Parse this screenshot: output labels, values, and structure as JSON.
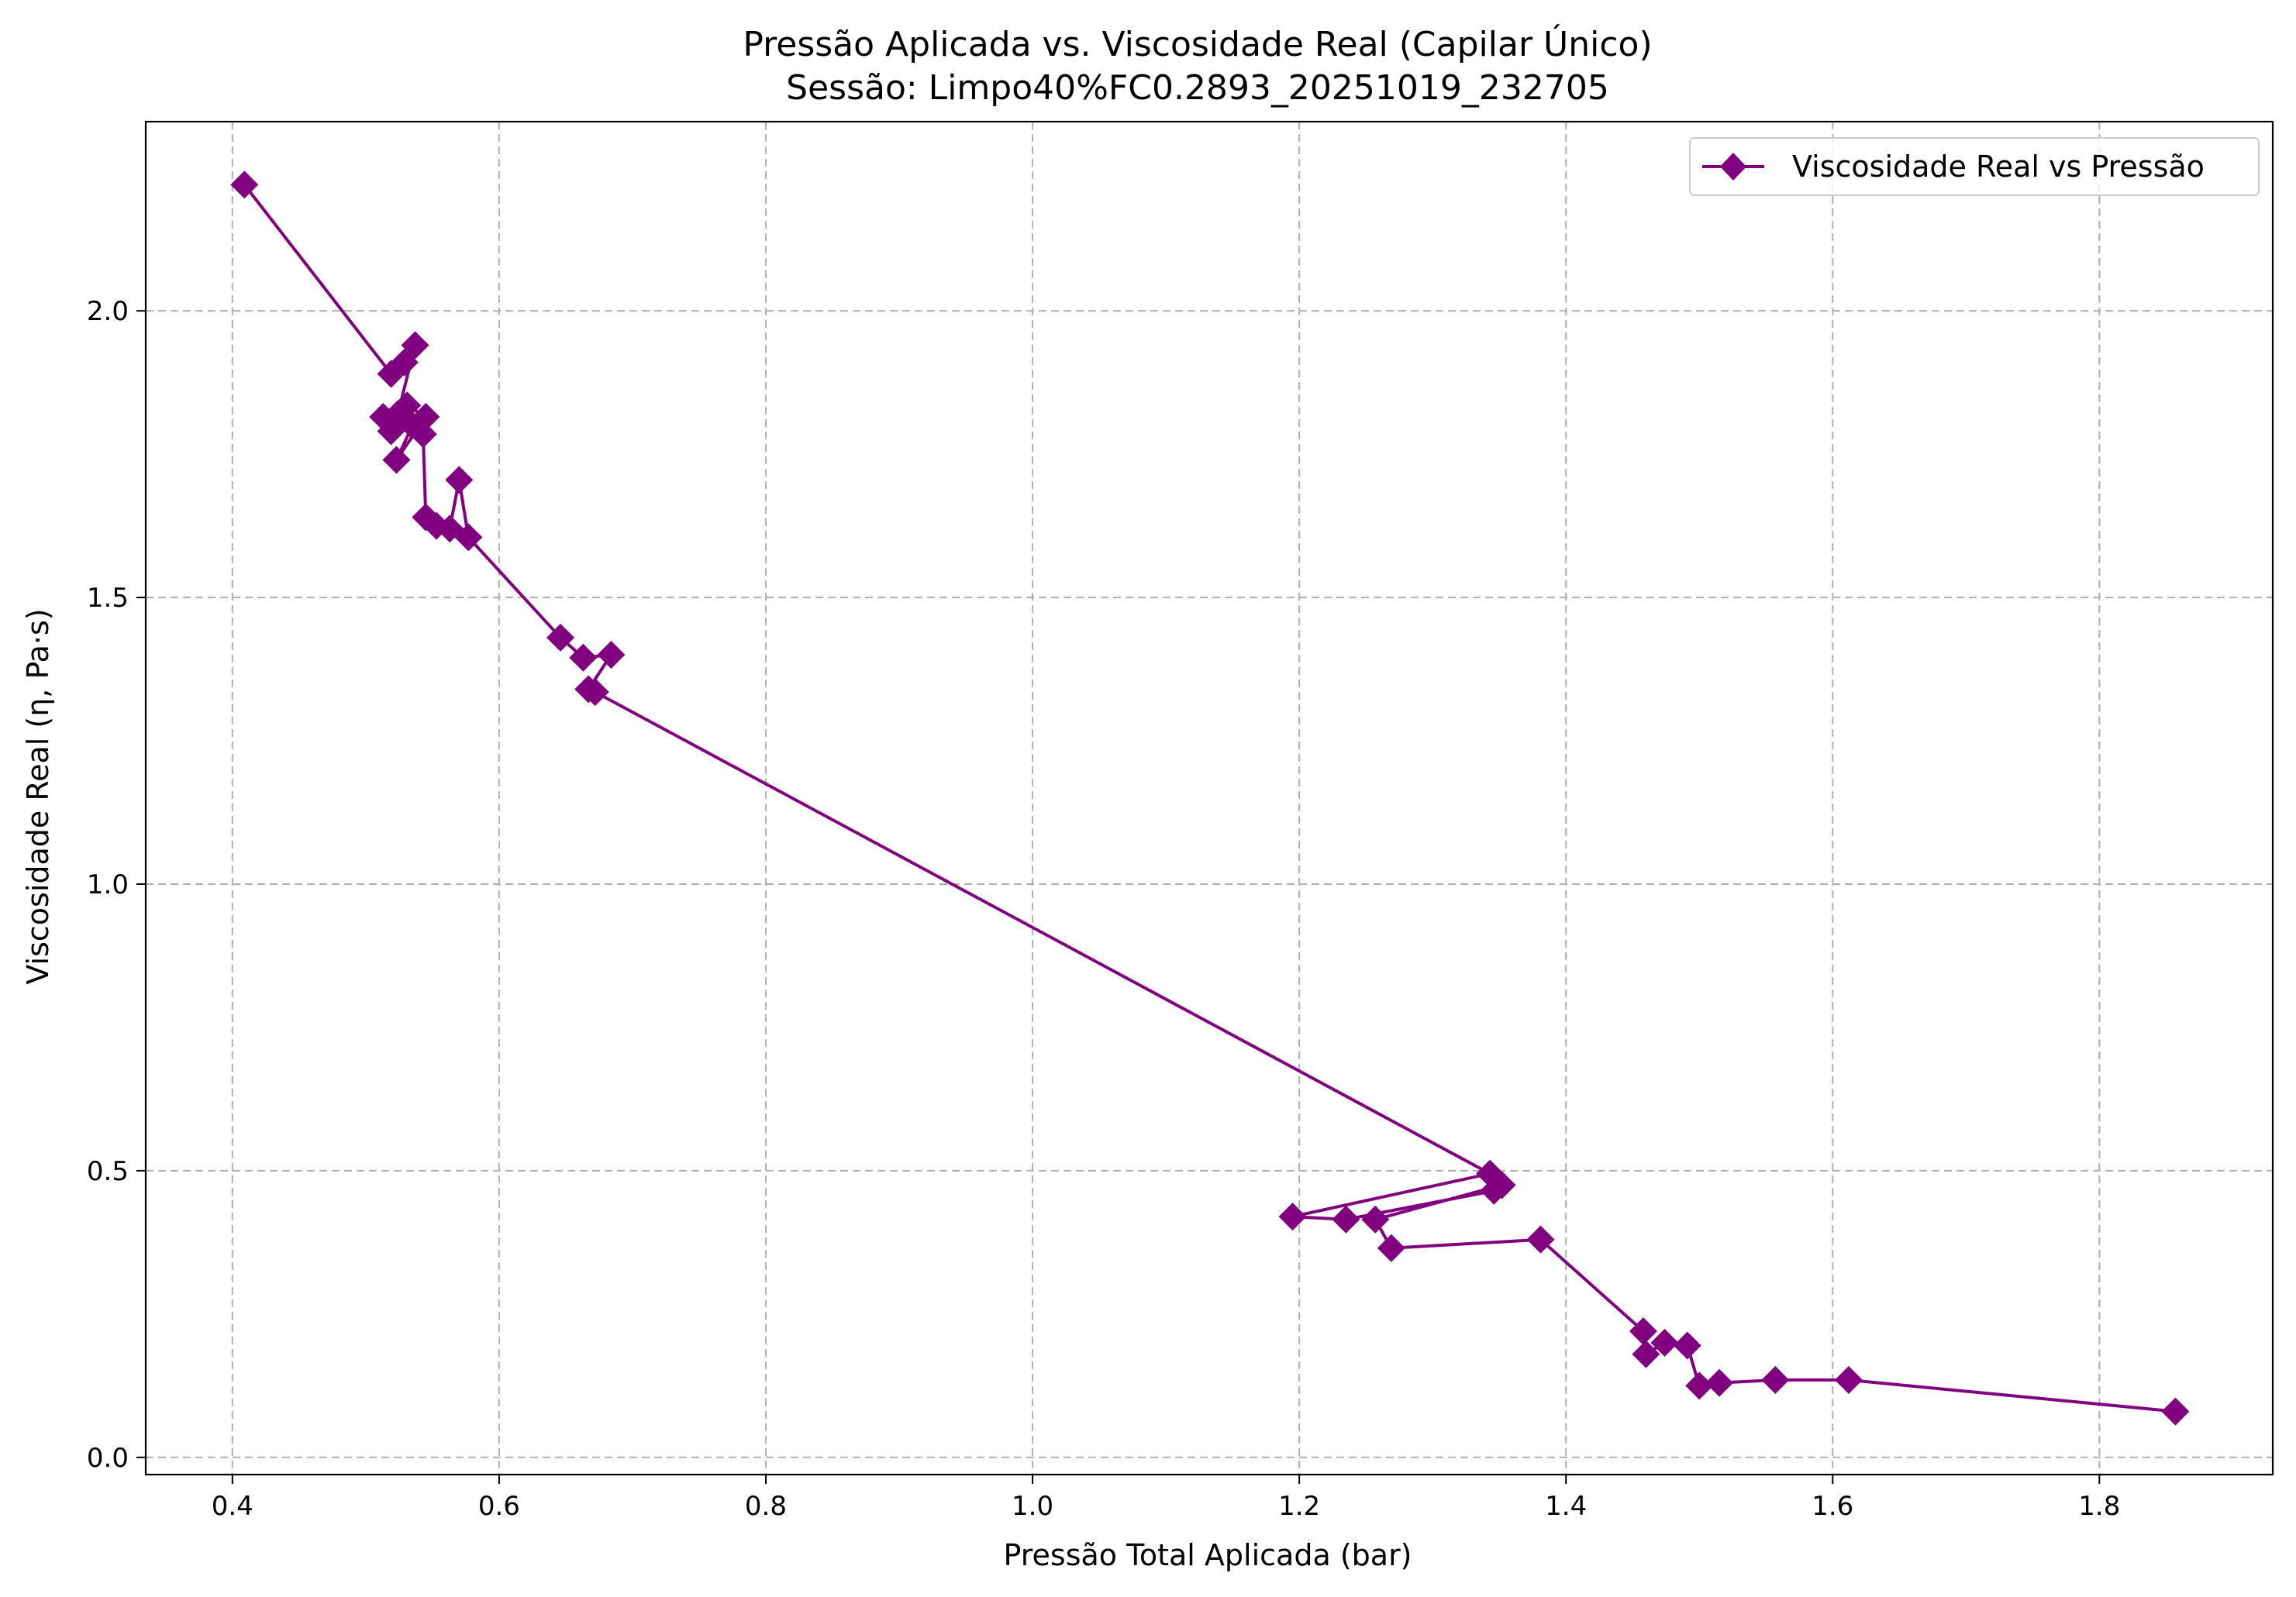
{
  "chart_data": {
    "type": "line",
    "title": "Pressão Aplicada vs. Viscosidade Real (Capilar Único)",
    "subtitle": "Sessão: Limpo40%FC0.2893_20251019_232705",
    "xlabel": "Pressão Total Aplicada (bar)",
    "ylabel": "Viscosidade Real (η, Pa·s)",
    "xlim": [
      0.335,
      1.93
    ],
    "ylim": [
      -0.03,
      2.33
    ],
    "xticks": [
      0.4,
      0.6,
      0.8,
      1.0,
      1.2,
      1.4,
      1.6,
      1.8
    ],
    "xtick_labels": [
      "0.4",
      "0.6",
      "0.8",
      "1.0",
      "1.2",
      "1.4",
      "1.6",
      "1.8"
    ],
    "yticks": [
      0.0,
      0.5,
      1.0,
      1.5,
      2.0
    ],
    "ytick_labels": [
      "0.0",
      "0.5",
      "1.0",
      "1.5",
      "2.0"
    ],
    "grid": true,
    "legend_position": "top-right",
    "series": [
      {
        "name": "Viscosidade Real vs Pressão",
        "color": "#800080",
        "marker": "diamond",
        "x": [
          0.409,
          0.519,
          0.529,
          0.537,
          0.524,
          0.513,
          0.519,
          0.531,
          0.545,
          0.523,
          0.535,
          0.543,
          0.545,
          0.553,
          0.563,
          0.57,
          0.577,
          0.646,
          0.663,
          0.684,
          0.667,
          0.672,
          1.343,
          1.195,
          1.235,
          1.346,
          1.352,
          1.257,
          1.269,
          1.381,
          1.458,
          1.46,
          1.474,
          1.491,
          1.5,
          1.515,
          1.557,
          1.612,
          1.857
        ],
        "y": [
          2.22,
          1.89,
          1.91,
          1.94,
          1.82,
          1.815,
          1.79,
          1.835,
          1.815,
          1.74,
          1.8,
          1.785,
          1.64,
          1.625,
          1.62,
          1.705,
          1.605,
          1.43,
          1.395,
          1.4,
          1.34,
          1.335,
          0.495,
          0.42,
          0.415,
          0.465,
          0.475,
          0.415,
          0.365,
          0.38,
          0.22,
          0.18,
          0.2,
          0.195,
          0.125,
          0.13,
          0.135,
          0.135,
          0.08
        ]
      }
    ]
  }
}
